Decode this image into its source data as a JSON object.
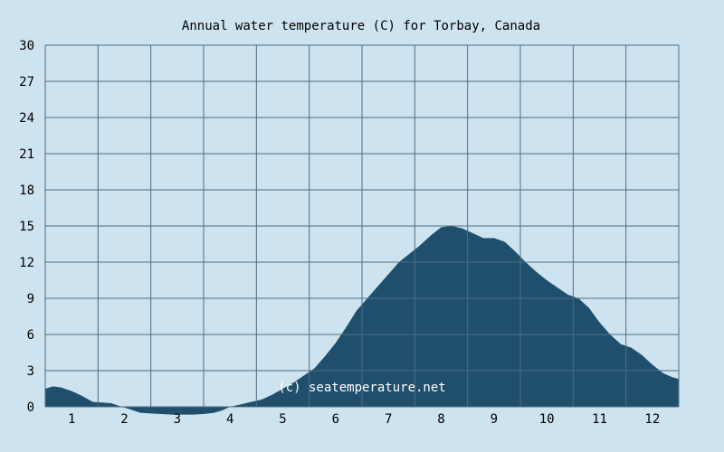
{
  "chart_data": {
    "type": "area",
    "title": "Annual water temperature (C) for Torbay, Canada",
    "xlabel": "",
    "ylabel": "",
    "xlim": [
      0.5,
      12.5
    ],
    "ylim": [
      -1,
      30
    ],
    "x_ticks": [
      "1",
      "2",
      "3",
      "4",
      "5",
      "6",
      "7",
      "8",
      "9",
      "10",
      "11",
      "12"
    ],
    "y_ticks": [
      "0",
      "3",
      "6",
      "9",
      "12",
      "15",
      "18",
      "21",
      "24",
      "27",
      "30"
    ],
    "grid": true,
    "series": [
      {
        "points": [
          [
            0.5,
            1.5
          ],
          [
            0.65,
            1.7
          ],
          [
            0.8,
            1.6
          ],
          [
            1.0,
            1.3
          ],
          [
            1.2,
            0.9
          ],
          [
            1.4,
            0.4
          ],
          [
            1.6,
            0.35
          ],
          [
            1.75,
            0.3
          ],
          [
            1.95,
            0.0
          ],
          [
            2.1,
            -0.2
          ],
          [
            2.3,
            -0.5
          ],
          [
            2.5,
            -0.55
          ],
          [
            2.7,
            -0.6
          ],
          [
            2.9,
            -0.65
          ],
          [
            3.1,
            -0.65
          ],
          [
            3.3,
            -0.65
          ],
          [
            3.5,
            -0.6
          ],
          [
            3.7,
            -0.5
          ],
          [
            3.85,
            -0.3
          ],
          [
            4.0,
            0.0
          ],
          [
            4.2,
            0.2
          ],
          [
            4.4,
            0.4
          ],
          [
            4.6,
            0.6
          ],
          [
            4.8,
            1.0
          ],
          [
            5.0,
            1.5
          ],
          [
            5.2,
            2.0
          ],
          [
            5.4,
            2.6
          ],
          [
            5.6,
            3.2
          ],
          [
            5.8,
            4.2
          ],
          [
            6.0,
            5.3
          ],
          [
            6.2,
            6.6
          ],
          [
            6.4,
            8.0
          ],
          [
            6.6,
            9.0
          ],
          [
            6.8,
            10.0
          ],
          [
            7.0,
            11.0
          ],
          [
            7.2,
            12.0
          ],
          [
            7.4,
            12.7
          ],
          [
            7.6,
            13.4
          ],
          [
            7.8,
            14.2
          ],
          [
            8.0,
            14.9
          ],
          [
            8.2,
            15.0
          ],
          [
            8.4,
            14.8
          ],
          [
            8.6,
            14.4
          ],
          [
            8.8,
            14.0
          ],
          [
            9.0,
            14.0
          ],
          [
            9.2,
            13.7
          ],
          [
            9.4,
            12.9
          ],
          [
            9.6,
            12.0
          ],
          [
            9.8,
            11.2
          ],
          [
            10.0,
            10.5
          ],
          [
            10.2,
            9.9
          ],
          [
            10.4,
            9.3
          ],
          [
            10.6,
            9.0
          ],
          [
            10.8,
            8.2
          ],
          [
            11.0,
            7.0
          ],
          [
            11.2,
            6.0
          ],
          [
            11.4,
            5.2
          ],
          [
            11.6,
            4.9
          ],
          [
            11.8,
            4.3
          ],
          [
            12.0,
            3.5
          ],
          [
            12.2,
            2.8
          ],
          [
            12.35,
            2.5
          ],
          [
            12.5,
            2.3
          ]
        ],
        "color": "#1f4f6c"
      }
    ],
    "colors": {
      "background": "#cde3ef",
      "grid": "#4d6d85",
      "fill": "#1f4f6c"
    },
    "watermark": "(c) seatemperature.net"
  }
}
